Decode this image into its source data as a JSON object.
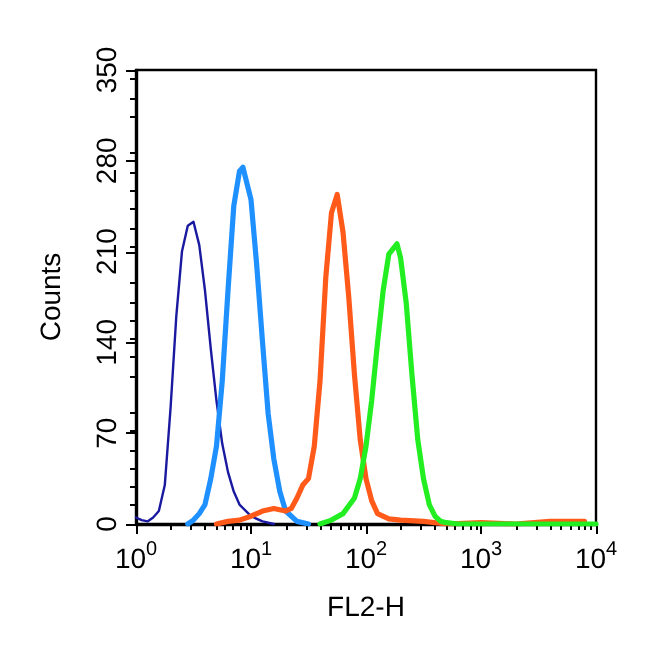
{
  "chart_data": {
    "type": "line",
    "xlabel": "FL2-H",
    "ylabel": "Counts",
    "log": "x",
    "xlim": [
      1,
      10000
    ],
    "xticks": [
      {
        "value": 1,
        "label": "10$^{0}$"
      },
      {
        "value": 10,
        "label": "10$^{1}$"
      },
      {
        "value": 100,
        "label": "10$^{2}$"
      },
      {
        "value": 1000,
        "label": "10$^{3}$"
      },
      {
        "value": 10000,
        "label": "10$^{4}$"
      }
    ],
    "ylim": [
      0,
      350
    ],
    "yticks": [
      0,
      70,
      140,
      210,
      280,
      350
    ],
    "grid": false,
    "marker": "none",
    "line_style": "solid",
    "series": [
      {
        "color": "#1a1aa0",
        "x": [
          1,
          1.12,
          1.26,
          1.41,
          1.58,
          1.78,
          2.0,
          2.24,
          2.51,
          2.82,
          3.16,
          3.55,
          3.98,
          4.47,
          5.01,
          5.62,
          6.31,
          7.08,
          7.94,
          10,
          12.6,
          15.8
        ],
        "values": [
          5,
          3,
          2,
          5,
          10,
          30,
          90,
          160,
          210,
          230,
          233,
          215,
          180,
          135,
          95,
          62,
          40,
          25,
          15,
          6,
          2,
          0
        ]
      },
      {
        "color": "#1e90ff",
        "x": [
          2.82,
          3.16,
          3.55,
          3.98,
          4.47,
          5.01,
          5.62,
          6.31,
          7.08,
          7.94,
          8.51,
          10,
          11.2,
          12.6,
          14.1,
          15.8,
          17.8,
          20,
          25.1,
          31.6
        ],
        "values": [
          0,
          3,
          8,
          15,
          35,
          60,
          110,
          180,
          245,
          272,
          275,
          250,
          200,
          140,
          85,
          50,
          25,
          10,
          2,
          0
        ]
      },
      {
        "color": "#ff5a1a",
        "x": [
          5.01,
          6.31,
          7.94,
          10,
          12.6,
          15.8,
          20,
          22.4,
          25.1,
          28.2,
          31.6,
          35.5,
          39.8,
          44.7,
          50.1,
          56.2,
          63.1,
          70.8,
          79.4,
          89.1,
          100,
          112,
          126,
          158,
          200,
          316,
          501,
          1000,
          2000,
          3980,
          7940
        ],
        "values": [
          0,
          2,
          3,
          6,
          10,
          12,
          10,
          12,
          20,
          30,
          35,
          60,
          110,
          190,
          240,
          254,
          225,
          175,
          115,
          65,
          35,
          18,
          8,
          4,
          3,
          2,
          0,
          1,
          0,
          2,
          2
        ]
      },
      {
        "color": "#22ee22",
        "x": [
          39.8,
          50.1,
          63.1,
          79.4,
          89.1,
          100,
          112,
          126,
          141,
          158,
          186,
          200,
          224,
          251,
          282,
          316,
          355,
          398,
          447,
          501,
          631,
          1000,
          10000
        ],
        "values": [
          0,
          3,
          8,
          20,
          35,
          60,
          95,
          140,
          180,
          208,
          216,
          205,
          170,
          115,
          65,
          35,
          15,
          6,
          2,
          1,
          0,
          0,
          0
        ]
      }
    ]
  }
}
